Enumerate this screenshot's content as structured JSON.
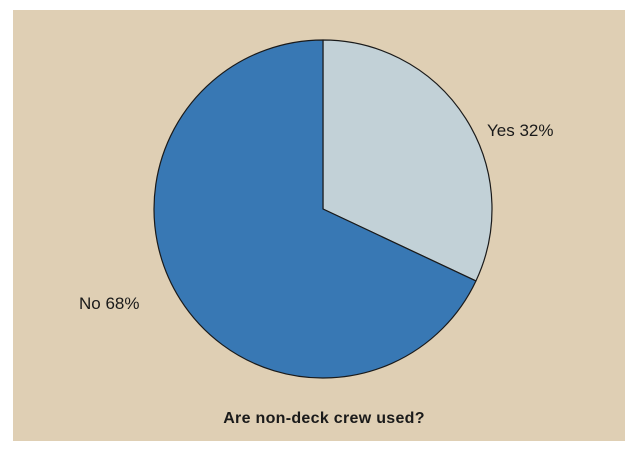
{
  "chart_data": {
    "type": "pie",
    "title": "Are non-deck crew used?",
    "slices": [
      {
        "label": "Yes",
        "value": 32,
        "color": "#c2d1d7"
      },
      {
        "label": "No",
        "value": 68,
        "color": "#3878b4"
      }
    ],
    "slice_labels": [
      "Yes 32%",
      "No 68%"
    ],
    "start_angle_deg": 0,
    "direction": "clockwise",
    "background_color": "#dfcfb4",
    "edge_color": "#1a1a1a"
  }
}
